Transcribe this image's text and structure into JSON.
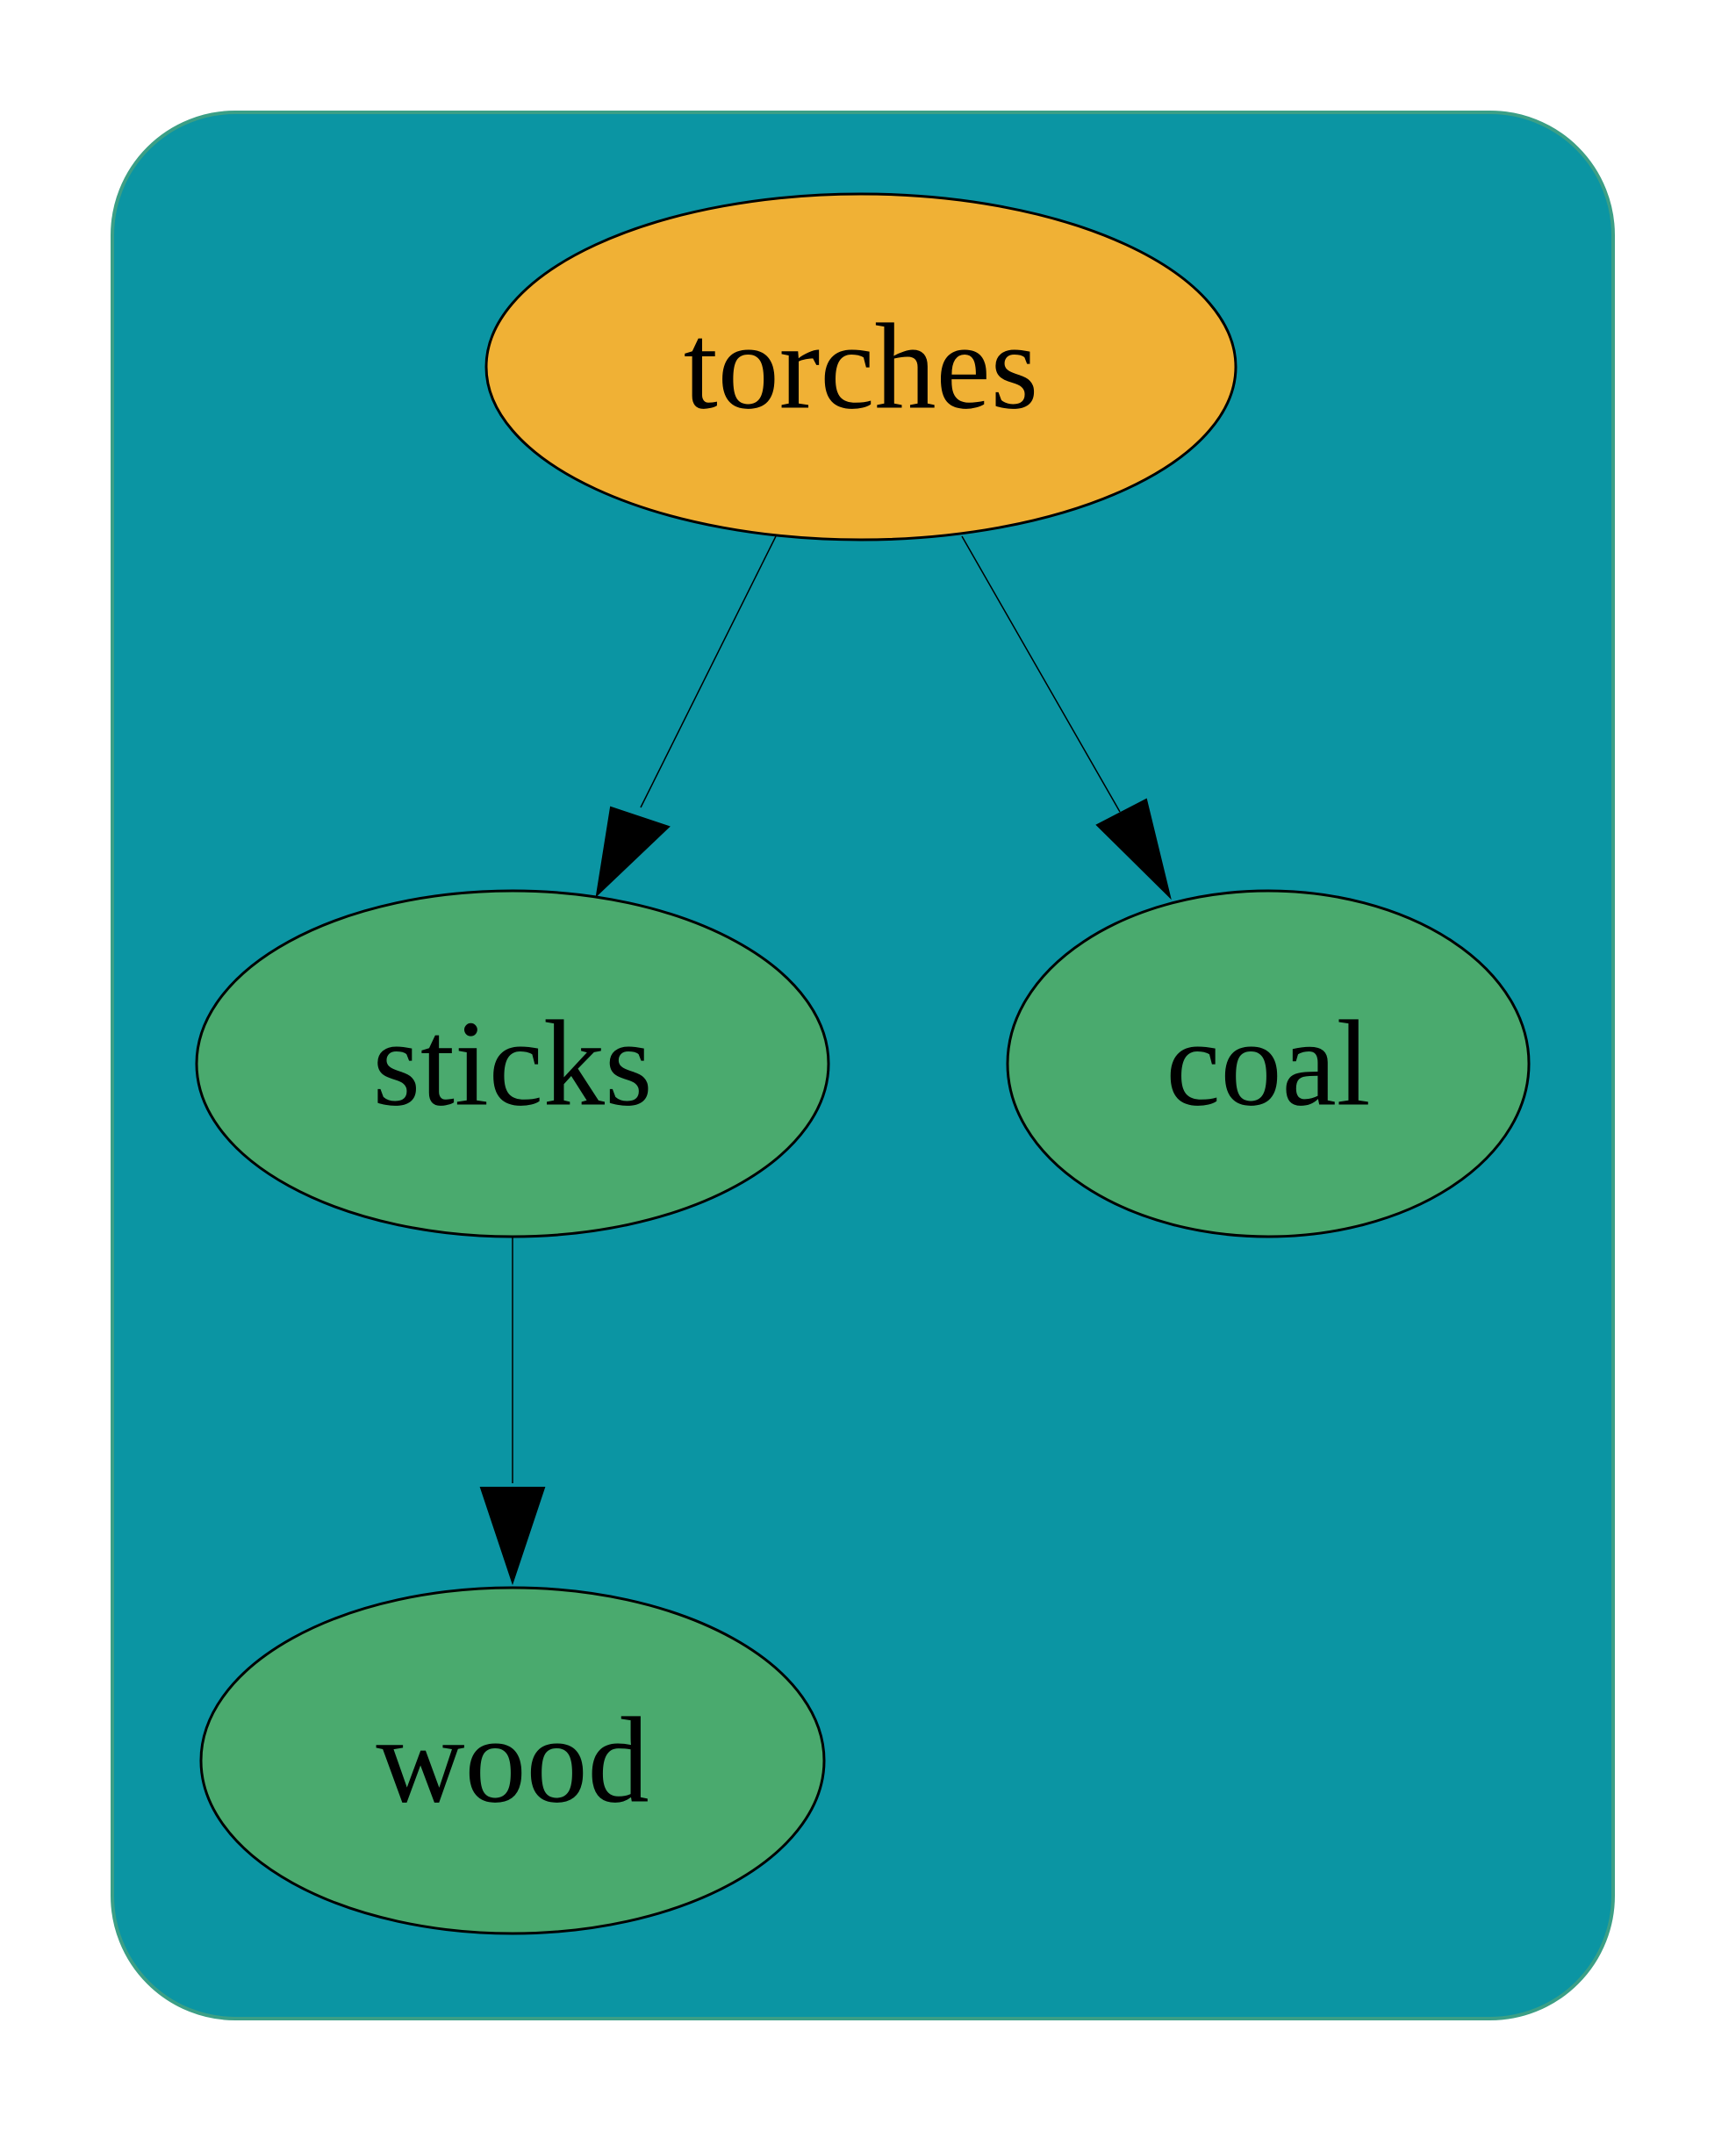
{
  "colors": {
    "background": "#ffffff",
    "panel": "#0b95a3",
    "panel_border": "#3c9f86",
    "root_node": "#f0b135",
    "child_node": "#4aaa6e",
    "edge": "#000000"
  },
  "nodes": [
    {
      "id": "torches",
      "label": "torches",
      "role": "root"
    },
    {
      "id": "sticks",
      "label": "sticks",
      "role": "child"
    },
    {
      "id": "coal",
      "label": "coal",
      "role": "child"
    },
    {
      "id": "wood",
      "label": "wood",
      "role": "child"
    }
  ],
  "edges": [
    {
      "from": "torches",
      "to": "sticks"
    },
    {
      "from": "torches",
      "to": "coal"
    },
    {
      "from": "sticks",
      "to": "wood"
    }
  ]
}
